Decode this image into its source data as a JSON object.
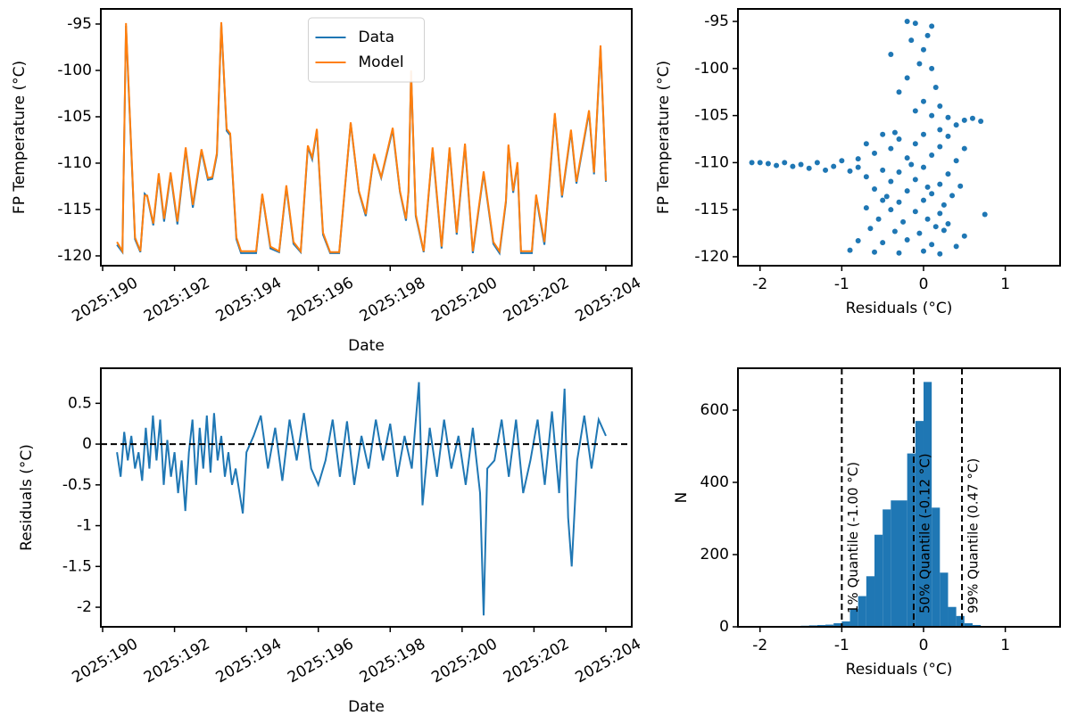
{
  "chart_data": [
    {
      "type": "line",
      "xlabel": "Date",
      "ylabel": "FP Temperature (°C)",
      "legend": "upper center",
      "xlim": [
        189.95,
        204.72
      ],
      "ylim": [
        -121.06,
        -93.37
      ],
      "xticks": [
        {
          "value": 190,
          "label": "2025:190"
        },
        {
          "value": 192,
          "label": "2025:192"
        },
        {
          "value": 194,
          "label": "2025:194"
        },
        {
          "value": 196,
          "label": "2025:196"
        },
        {
          "value": 198,
          "label": "2025:198"
        },
        {
          "value": 200,
          "label": "2025:200"
        },
        {
          "value": 202,
          "label": "2025:202"
        },
        {
          "value": 204,
          "label": "2025:204"
        }
      ],
      "yticks": [
        -95,
        -100,
        -105,
        -110,
        -115,
        -120
      ],
      "x": [
        190.4,
        190.55,
        190.65,
        190.9,
        191.05,
        191.17,
        191.24,
        191.41,
        191.56,
        191.71,
        191.89,
        192.08,
        192.31,
        192.51,
        192.75,
        192.93,
        193.05,
        193.18,
        193.3,
        193.45,
        193.55,
        193.72,
        193.85,
        194.27,
        194.44,
        194.67,
        194.91,
        195.11,
        195.31,
        195.51,
        195.71,
        195.83,
        195.96,
        196.13,
        196.33,
        196.58,
        196.9,
        197.13,
        197.32,
        197.55,
        197.75,
        198.07,
        198.27,
        198.44,
        198.51,
        198.58,
        198.71,
        198.93,
        199.18,
        199.43,
        199.65,
        199.85,
        200.08,
        200.3,
        200.6,
        200.87,
        201.04,
        201.22,
        201.29,
        201.42,
        201.54,
        201.64,
        201.94,
        202.06,
        202.29,
        202.58,
        202.78,
        203.03,
        203.18,
        203.53,
        203.67,
        203.85,
        204.0
      ],
      "series": [
        {
          "name": "Data",
          "color": "#1f77b4",
          "values": [
            -118.8,
            -119.6,
            -95.2,
            -118.2,
            -119.6,
            -113.3,
            -113.6,
            -116.7,
            -111.3,
            -116.3,
            -111.2,
            -116.6,
            -108.5,
            -114.8,
            -108.7,
            -111.8,
            -111.7,
            -109.1,
            -95.0,
            -106.5,
            -107.0,
            -118.2,
            -119.7,
            -119.7,
            -113.4,
            -119.2,
            -119.6,
            -112.6,
            -118.7,
            -119.6,
            -108.3,
            -109.6,
            -106.5,
            -117.7,
            -119.7,
            -119.7,
            -105.7,
            -113.1,
            -115.7,
            -109.1,
            -111.6,
            -106.4,
            -113.1,
            -116.2,
            -113.1,
            -100.2,
            -115.7,
            -119.6,
            -108.5,
            -119.2,
            -108.5,
            -117.7,
            -108.1,
            -119.7,
            -111.1,
            -118.7,
            -119.7,
            -114.2,
            -108.2,
            -113.2,
            -110.1,
            -119.7,
            -119.7,
            -113.6,
            -118.8,
            -104.8,
            -113.7,
            -106.6,
            -112.2,
            -104.5,
            -111.2,
            -97.6,
            -112.0
          ]
        },
        {
          "name": "Model",
          "color": "#ff7f0e",
          "values": [
            -118.5,
            -119.5,
            -94.9,
            -118.0,
            -119.5,
            -113.5,
            -113.5,
            -116.5,
            -111.1,
            -116.0,
            -111.0,
            -116.3,
            -108.3,
            -114.5,
            -108.5,
            -111.6,
            -111.5,
            -108.9,
            -94.8,
            -106.3,
            -106.8,
            -118.0,
            -119.5,
            -119.5,
            -113.3,
            -119.0,
            -119.5,
            -112.4,
            -118.5,
            -119.5,
            -108.1,
            -109.4,
            -106.3,
            -117.5,
            -119.6,
            -119.6,
            -105.6,
            -113.0,
            -115.5,
            -109.0,
            -111.5,
            -106.2,
            -113.0,
            -116.0,
            -113.0,
            -100.0,
            -115.5,
            -119.5,
            -108.3,
            -119.0,
            -108.3,
            -117.5,
            -107.9,
            -119.5,
            -110.9,
            -118.5,
            -119.5,
            -114.0,
            -108.0,
            -113.0,
            -109.9,
            -119.5,
            -119.5,
            -113.4,
            -118.5,
            -104.6,
            -113.5,
            -106.4,
            -112.0,
            -104.3,
            -111.0,
            -97.3,
            -111.9
          ]
        }
      ]
    },
    {
      "type": "scatter",
      "xlabel": "Residuals (°C)",
      "ylabel": "FP Temperature (°C)",
      "color": "#1f77b4",
      "xlim": [
        -2.27,
        1.67
      ],
      "ylim": [
        -120.95,
        -93.67
      ],
      "xticks": [
        -2,
        -1,
        0,
        1
      ],
      "yticks": [
        -95,
        -100,
        -105,
        -110,
        -115,
        -120
      ],
      "x": [
        -2.1,
        -2.0,
        -1.9,
        -1.8,
        -1.7,
        -1.6,
        -1.5,
        -1.4,
        -1.3,
        -1.2,
        -1.1,
        -1.0,
        -0.9,
        -0.8,
        -0.2,
        -0.1,
        0.1,
        0.05,
        -0.15,
        0,
        -0.4,
        -0.05,
        0.1,
        -0.2,
        0.15,
        -0.3,
        0,
        0.2,
        -0.1,
        0.1,
        0.3,
        0.5,
        0.7,
        0.6,
        0.4,
        0.2,
        -0.5,
        -0.3,
        0,
        0.3,
        -0.7,
        -0.4,
        -0.1,
        0.2,
        0.5,
        -0.6,
        -0.2,
        0.1,
        0.4,
        -0.8,
        -0.5,
        -0.3,
        0,
        0.3,
        -0.7,
        -0.4,
        -0.1,
        0.2,
        0.45,
        -0.6,
        -0.2,
        0.1,
        0.35,
        -0.5,
        -0.3,
        0,
        0.25,
        -0.7,
        -0.4,
        -0.1,
        0.2,
        0.75,
        -0.55,
        -0.25,
        0.05,
        0.3,
        -0.65,
        -0.35,
        -0.05,
        0.25,
        0.5,
        -0.8,
        -0.5,
        -0.2,
        0.1,
        0.4,
        -0.9,
        -0.6,
        -0.3,
        0,
        0.2,
        -0.45,
        -0.15,
        0.15,
        -0.35,
        0.05
      ],
      "y": [
        -110,
        -110,
        -110.1,
        -110.3,
        -110,
        -110.4,
        -110.2,
        -110.6,
        -110,
        -110.8,
        -110.4,
        -109.8,
        -110.9,
        -109.6,
        -95,
        -95.2,
        -95.5,
        -96.5,
        -97,
        -98,
        -98.5,
        -99.5,
        -100,
        -101,
        -102,
        -102.5,
        -103.5,
        -104,
        -104.5,
        -105,
        -105.2,
        -105.5,
        -105.6,
        -105.3,
        -106,
        -106.5,
        -107,
        -107.5,
        -107,
        -107.2,
        -108,
        -108.5,
        -108,
        -108.3,
        -108.5,
        -109,
        -109.5,
        -109.2,
        -109.8,
        -110.5,
        -110.8,
        -111,
        -110.5,
        -111.2,
        -111.5,
        -112,
        -111.8,
        -112.3,
        -112.5,
        -112.8,
        -113,
        -113.3,
        -113.5,
        -114,
        -114.2,
        -114,
        -114.5,
        -114.8,
        -115,
        -115.2,
        -115.4,
        -115.5,
        -116,
        -116.3,
        -116,
        -116.5,
        -117,
        -117.3,
        -117.5,
        -117.2,
        -117.8,
        -118.3,
        -118.5,
        -118.2,
        -118.7,
        -118.9,
        -119.3,
        -119.5,
        -119.6,
        -119.4,
        -119.7,
        -113.6,
        -110.2,
        -116.8,
        -106.8,
        -112.6
      ]
    },
    {
      "type": "line",
      "xlabel": "Date",
      "ylabel": "Residuals (°C)",
      "hlines": [
        0
      ],
      "xlim": [
        189.95,
        204.72
      ],
      "ylim": [
        -2.24,
        0.93
      ],
      "xticks": [
        {
          "value": 190,
          "label": "2025:190"
        },
        {
          "value": 192,
          "label": "2025:192"
        },
        {
          "value": 194,
          "label": "2025:194"
        },
        {
          "value": 196,
          "label": "2025:196"
        },
        {
          "value": 198,
          "label": "2025:198"
        },
        {
          "value": 200,
          "label": "2025:200"
        },
        {
          "value": 202,
          "label": "2025:202"
        },
        {
          "value": 204,
          "label": "2025:204"
        }
      ],
      "yticks": [
        0.5,
        0.0,
        -0.5,
        -1.0,
        -1.5,
        -2.0
      ],
      "x": [
        190.4,
        190.5,
        190.6,
        190.7,
        190.8,
        190.9,
        191.0,
        191.1,
        191.2,
        191.3,
        191.4,
        191.5,
        191.6,
        191.7,
        191.8,
        191.9,
        192.0,
        192.1,
        192.2,
        192.3,
        192.4,
        192.5,
        192.6,
        192.7,
        192.8,
        192.9,
        193.0,
        193.1,
        193.2,
        193.3,
        193.4,
        193.5,
        193.6,
        193.7,
        193.9,
        194.0,
        194.2,
        194.4,
        194.6,
        194.8,
        195.0,
        195.2,
        195.4,
        195.6,
        195.8,
        196.0,
        196.2,
        196.4,
        196.6,
        196.8,
        197.0,
        197.2,
        197.4,
        197.6,
        197.8,
        198.0,
        198.2,
        198.4,
        198.6,
        198.8,
        198.9,
        199.1,
        199.3,
        199.5,
        199.7,
        199.9,
        200.1,
        200.3,
        200.5,
        200.6,
        200.7,
        200.9,
        201.1,
        201.3,
        201.5,
        201.7,
        201.9,
        202.1,
        202.3,
        202.5,
        202.7,
        202.85,
        202.95,
        203.05,
        203.2,
        203.4,
        203.6,
        203.8,
        204.0
      ],
      "series": [
        {
          "name": "Residuals",
          "color": "#1f77b4",
          "values": [
            -0.1,
            -0.4,
            0.15,
            -0.2,
            0.1,
            -0.3,
            -0.1,
            -0.45,
            0.2,
            -0.3,
            0.35,
            -0.2,
            0.3,
            -0.5,
            0.05,
            -0.4,
            -0.1,
            -0.6,
            -0.2,
            -0.82,
            -0.1,
            0.3,
            -0.5,
            0.2,
            -0.3,
            0.35,
            -0.35,
            0.38,
            -0.2,
            0.1,
            -0.4,
            -0.1,
            -0.5,
            -0.3,
            -0.85,
            -0.1,
            0.1,
            0.35,
            -0.3,
            0.2,
            -0.45,
            0.3,
            -0.2,
            0.38,
            -0.3,
            -0.5,
            -0.2,
            0.3,
            -0.4,
            0.28,
            -0.5,
            0.1,
            -0.3,
            0.3,
            -0.2,
            0.25,
            -0.4,
            0.1,
            -0.3,
            0.76,
            -0.75,
            0.2,
            -0.4,
            0.3,
            -0.3,
            0.1,
            -0.5,
            0.2,
            -0.6,
            -2.1,
            -0.3,
            -0.2,
            0.3,
            -0.4,
            0.3,
            -0.6,
            -0.2,
            0.3,
            -0.5,
            0.4,
            -0.6,
            0.68,
            -0.9,
            -1.5,
            -0.2,
            0.35,
            -0.3,
            0.3,
            0.1
          ]
        }
      ]
    },
    {
      "type": "histogram",
      "xlabel": "Residuals (°C)",
      "ylabel": "N",
      "color": "#1f77b4",
      "xlim": [
        -2.27,
        1.67
      ],
      "ylim": [
        0,
        716
      ],
      "xticks": [
        -2,
        -1,
        0,
        1
      ],
      "yticks": [
        0,
        200,
        400,
        600
      ],
      "bins": [
        -2.1,
        -2.0,
        -1.9,
        -1.8,
        -1.7,
        -1.6,
        -1.5,
        -1.4,
        -1.3,
        -1.2,
        -1.1,
        -1.0,
        -0.9,
        -0.8,
        -0.7,
        -0.6,
        -0.5,
        -0.4,
        -0.3,
        -0.2,
        -0.1,
        0.0,
        0.1,
        0.2,
        0.3,
        0.4,
        0.5,
        0.6,
        0.7,
        0.8
      ],
      "values": [
        1,
        1,
        1,
        1,
        1,
        2,
        3,
        4,
        5,
        6,
        10,
        15,
        50,
        85,
        140,
        255,
        325,
        350,
        350,
        480,
        570,
        678,
        330,
        150,
        55,
        30,
        10,
        5,
        2
      ],
      "vlines": [
        {
          "value": -1.0,
          "label": "1% Quantile (-1.00 °C)"
        },
        {
          "value": -0.12,
          "label": "50% Quantile (-0.12 °C)"
        },
        {
          "value": 0.47,
          "label": "99% Quantile (0.47 °C)"
        }
      ]
    }
  ]
}
